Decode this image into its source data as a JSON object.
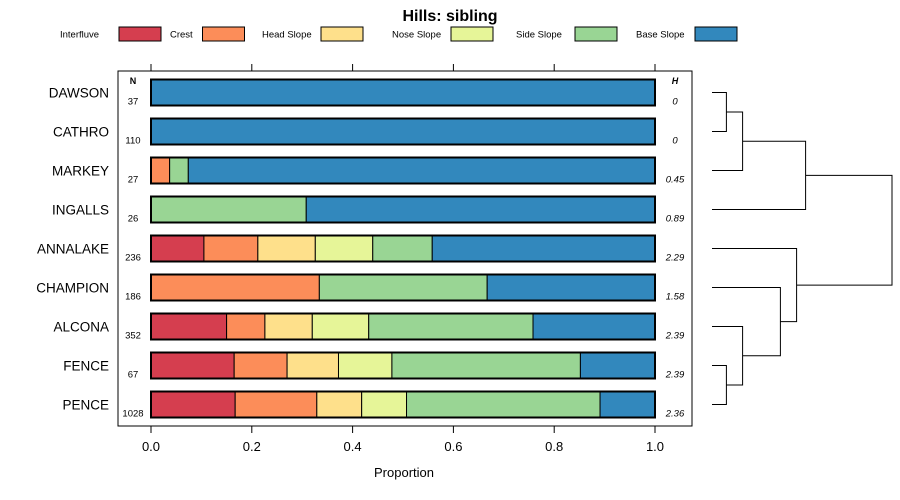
{
  "chart_data": {
    "type": "bar",
    "orientation": "horizontal",
    "stacked": true,
    "title": "Hills: sibling",
    "xlabel": "Proportion",
    "ylabel": "",
    "xlim": [
      0,
      1
    ],
    "xticks": [
      "0.0",
      "0.2",
      "0.4",
      "0.6",
      "0.8",
      "1.0"
    ],
    "n_header": "N",
    "h_header": "H",
    "legend": [
      {
        "name": "Interfluve",
        "color": "#d53e4f"
      },
      {
        "name": "Crest",
        "color": "#fc8d59"
      },
      {
        "name": "Head Slope",
        "color": "#fee08b"
      },
      {
        "name": "Nose Slope",
        "color": "#e6f598"
      },
      {
        "name": "Side Slope",
        "color": "#99d594"
      },
      {
        "name": "Base Slope",
        "color": "#3288bd"
      }
    ],
    "categories": [
      "DAWSON",
      "CATHRO",
      "MARKEY",
      "INGALLS",
      "ANNALAKE",
      "CHAMPION",
      "ALCONA",
      "FENCE",
      "PENCE"
    ],
    "n": [
      "37",
      "110",
      "27",
      "26",
      "236",
      "186",
      "352",
      "67",
      "1028"
    ],
    "h": [
      "0",
      "0",
      "0.45",
      "0.89",
      "2.29",
      "1.58",
      "2.39",
      "2.39",
      "2.36"
    ],
    "series": [
      {
        "name": "Interfluve",
        "values": [
          0,
          0,
          0,
          0,
          0.105,
          0,
          0.15,
          0.165,
          0.167
        ]
      },
      {
        "name": "Crest",
        "values": [
          0,
          0,
          0.037,
          0,
          0.107,
          0.334,
          0.076,
          0.105,
          0.162
        ]
      },
      {
        "name": "Head Slope",
        "values": [
          0,
          0,
          0,
          0,
          0.114,
          0,
          0.094,
          0.102,
          0.089
        ]
      },
      {
        "name": "Nose Slope",
        "values": [
          0,
          0,
          0,
          0,
          0.114,
          0,
          0.112,
          0.106,
          0.089
        ]
      },
      {
        "name": "Side Slope",
        "values": [
          0,
          0,
          0.037,
          0.308,
          0.118,
          0.333,
          0.326,
          0.374,
          0.384
        ]
      },
      {
        "name": "Base Slope",
        "values": [
          1,
          1,
          0.926,
          0.692,
          0.442,
          0.333,
          0.242,
          0.148,
          0.109
        ]
      }
    ],
    "dendrogram": {
      "type": "tree",
      "leaves": [
        "DAWSON",
        "CATHRO",
        "MARKEY",
        "INGALLS",
        "ANNALAKE",
        "CHAMPION",
        "ALCONA",
        "FENCE",
        "PENCE"
      ],
      "merges": [
        {
          "a": 0,
          "b": 1,
          "height": 0.08
        },
        {
          "a": -1,
          "b": 2,
          "height": 0.17
        },
        {
          "a": -2,
          "b": 3,
          "height": 0.52
        },
        {
          "a": 7,
          "b": 8,
          "height": 0.08
        },
        {
          "a": 6,
          "b": -4,
          "height": 0.17
        },
        {
          "a": 5,
          "b": -5,
          "height": 0.38
        },
        {
          "a": 4,
          "b": -6,
          "height": 0.47
        },
        {
          "a": -3,
          "b": -7,
          "height": 1.0
        }
      ]
    }
  }
}
